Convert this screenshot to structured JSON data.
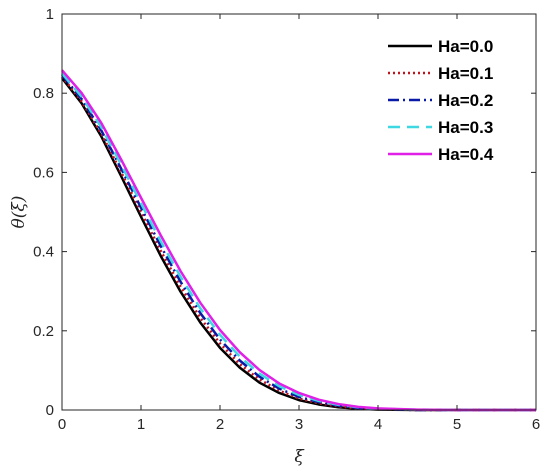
{
  "chart_data": {
    "type": "line",
    "xlabel": "ξ",
    "ylabel": "θ(ξ)",
    "xlim": [
      0,
      6
    ],
    "ylim": [
      0,
      1
    ],
    "xticks": [
      "0",
      "1",
      "2",
      "3",
      "4",
      "5",
      "6"
    ],
    "yticks": [
      "0",
      "0.2",
      "0.4",
      "0.6",
      "0.8",
      "1"
    ],
    "grid": false,
    "legend_position": "top-right",
    "x": [
      0,
      0.25,
      0.5,
      0.75,
      1.0,
      1.25,
      1.5,
      1.75,
      2.0,
      2.25,
      2.5,
      2.75,
      3.0,
      3.25,
      3.5,
      3.75,
      4.0,
      4.5,
      5.0,
      5.5,
      6.0
    ],
    "series": [
      {
        "name": "Ha=0.0",
        "color": "#000000",
        "dash": "solid",
        "values": [
          0.838,
          0.774,
          0.69,
          0.59,
          0.488,
          0.389,
          0.299,
          0.221,
          0.157,
          0.107,
          0.069,
          0.043,
          0.025,
          0.014,
          0.007,
          0.003,
          0.001,
          0.0,
          0.0,
          0.0,
          0.0
        ]
      },
      {
        "name": "Ha=0.1",
        "color": "#c0141c",
        "dash": "dotted",
        "values": [
          0.842,
          0.779,
          0.697,
          0.6,
          0.5,
          0.402,
          0.312,
          0.233,
          0.168,
          0.116,
          0.077,
          0.049,
          0.029,
          0.017,
          0.009,
          0.004,
          0.002,
          0.0,
          0.0,
          0.0,
          0.0
        ]
      },
      {
        "name": "Ha=0.2",
        "color": "#0a1aa8",
        "dash": "dashdot",
        "values": [
          0.846,
          0.785,
          0.705,
          0.609,
          0.511,
          0.414,
          0.324,
          0.245,
          0.178,
          0.125,
          0.084,
          0.054,
          0.033,
          0.02,
          0.011,
          0.005,
          0.002,
          0.0,
          0.0,
          0.0,
          0.0
        ]
      },
      {
        "name": "Ha=0.3",
        "color": "#3ed8e2",
        "dash": "dashed",
        "values": [
          0.85,
          0.791,
          0.713,
          0.619,
          0.522,
          0.426,
          0.337,
          0.257,
          0.19,
          0.135,
          0.092,
          0.06,
          0.038,
          0.023,
          0.013,
          0.007,
          0.003,
          0.001,
          0.0,
          0.0,
          0.0
        ]
      },
      {
        "name": "Ha=0.4",
        "color": "#e020e6",
        "dash": "solid",
        "values": [
          0.858,
          0.8,
          0.724,
          0.632,
          0.536,
          0.441,
          0.351,
          0.271,
          0.202,
          0.146,
          0.101,
          0.067,
          0.043,
          0.026,
          0.015,
          0.008,
          0.004,
          0.001,
          0.0,
          0.0,
          0.0
        ]
      }
    ]
  }
}
